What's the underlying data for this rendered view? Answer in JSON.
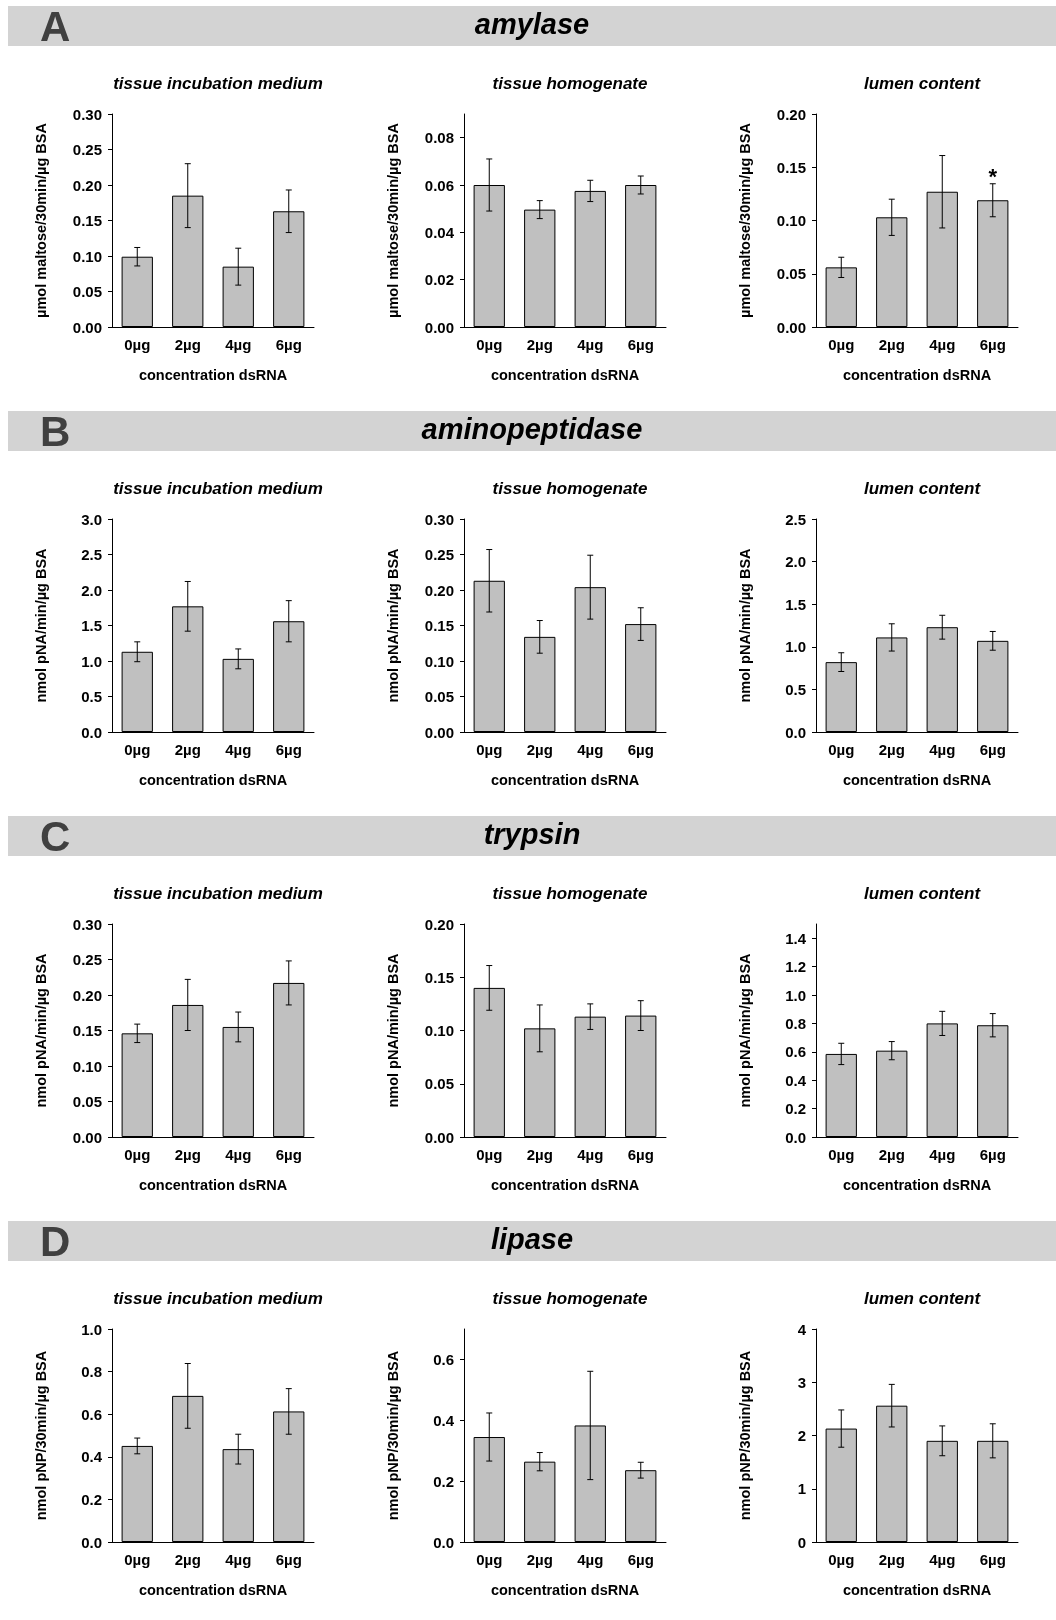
{
  "chart_data": [
    {
      "type": "bar",
      "title": "tissue incubation medium",
      "annotations": [
        "A",
        "amylase"
      ],
      "xlabel": "concentration dsRNA",
      "ylabel": "µmol maltose/30min/µg BSA",
      "categories": [
        "0µg",
        "2µg",
        "4µg",
        "6µg"
      ],
      "color": "#c0c0c0",
      "values": [
        0.099,
        0.185,
        0.085,
        0.163
      ],
      "errors": [
        0.013,
        0.045,
        0.026,
        0.03
      ],
      "ylim": [
        0,
        0.3
      ],
      "yticks": [
        {
          "value": 0,
          "label": "0.00"
        },
        {
          "value": 0.05,
          "label": "0.05"
        },
        {
          "value": 0.1,
          "label": "0.10"
        },
        {
          "value": 0.15,
          "label": "0.15"
        },
        {
          "value": 0.2,
          "label": "0.20"
        },
        {
          "value": 0.25,
          "label": "0.25"
        },
        {
          "value": 0.3,
          "label": "0.30"
        }
      ],
      "grid": false
    },
    {
      "type": "bar",
      "title": "tissue homogenate",
      "xlabel": "concentration dsRNA",
      "ylabel": "µmol maltose/30min/µg BSA",
      "categories": [
        "0µg",
        "2µg",
        "4µg",
        "6µg"
      ],
      "color": "#c0c0c0",
      "values": [
        0.06,
        0.0496,
        0.0575,
        0.06
      ],
      "errors": [
        0.011,
        0.0038,
        0.0045,
        0.0038
      ],
      "ylim": [
        0,
        0.09
      ],
      "yticks": [
        {
          "value": 0,
          "label": "0.00"
        },
        {
          "value": 0.02,
          "label": "0.02"
        },
        {
          "value": 0.04,
          "label": "0.04"
        },
        {
          "value": 0.06,
          "label": "0.06"
        },
        {
          "value": 0.08,
          "label": "0.08"
        }
      ],
      "grid": false
    },
    {
      "type": "bar",
      "title": "lumen content",
      "xlabel": "concentration dsRNA",
      "ylabel": "µmol maltose/30min/µg BSA",
      "categories": [
        "0µg",
        "2µg",
        "4µg",
        "6µg"
      ],
      "color": "#c0c0c0",
      "values": [
        0.056,
        0.103,
        0.127,
        0.119
      ],
      "errors": [
        0.0095,
        0.017,
        0.034,
        0.0155
      ],
      "annotations": [
        {
          "text": "*",
          "x": "6µg",
          "y": 0.1345
        }
      ],
      "ylim": [
        0,
        0.2
      ],
      "yticks": [
        {
          "value": 0,
          "label": "0.00"
        },
        {
          "value": 0.05,
          "label": "0.05"
        },
        {
          "value": 0.1,
          "label": "0.10"
        },
        {
          "value": 0.15,
          "label": "0.15"
        },
        {
          "value": 0.2,
          "label": "0.20"
        }
      ],
      "grid": false
    },
    {
      "type": "bar",
      "title": "tissue incubation medium",
      "annotations": [
        "B",
        "aminopeptidase"
      ],
      "xlabel": "concentration dsRNA",
      "ylabel": "nmol pNA/min/µg BSA",
      "categories": [
        "0µg",
        "2µg",
        "4µg",
        "6µg"
      ],
      "color": "#c0c0c0",
      "values": [
        1.13,
        1.77,
        1.03,
        1.56
      ],
      "errors": [
        0.14,
        0.35,
        0.14,
        0.29
      ],
      "ylim": [
        0,
        3
      ],
      "yticks": [
        {
          "value": 0,
          "label": "0.0"
        },
        {
          "value": 0.5,
          "label": "0.5"
        },
        {
          "value": 1,
          "label": "1.0"
        },
        {
          "value": 1.5,
          "label": "1.5"
        },
        {
          "value": 2,
          "label": "2.0"
        },
        {
          "value": 2.5,
          "label": "2.5"
        },
        {
          "value": 3,
          "label": "3.0"
        }
      ],
      "grid": false
    },
    {
      "type": "bar",
      "title": "tissue homogenate",
      "xlabel": "concentration dsRNA",
      "ylabel": "nmol pNA/min/µg BSA",
      "categories": [
        "0µg",
        "2µg",
        "4µg",
        "6µg"
      ],
      "color": "#c0c0c0",
      "values": [
        0.213,
        0.134,
        0.204,
        0.152
      ],
      "errors": [
        0.044,
        0.023,
        0.045,
        0.023
      ],
      "ylim": [
        0,
        0.3
      ],
      "yticks": [
        {
          "value": 0,
          "label": "0.00"
        },
        {
          "value": 0.05,
          "label": "0.05"
        },
        {
          "value": 0.1,
          "label": "0.10"
        },
        {
          "value": 0.15,
          "label": "0.15"
        },
        {
          "value": 0.2,
          "label": "0.20"
        },
        {
          "value": 0.25,
          "label": "0.25"
        },
        {
          "value": 0.3,
          "label": "0.30"
        }
      ],
      "grid": false
    },
    {
      "type": "bar",
      "title": "lumen content",
      "xlabel": "concentration dsRNA",
      "ylabel": "nmol pNA/min/µg BSA",
      "categories": [
        "0µg",
        "2µg",
        "4µg",
        "6µg"
      ],
      "color": "#c0c0c0",
      "values": [
        0.82,
        1.11,
        1.23,
        1.07
      ],
      "errors": [
        0.11,
        0.16,
        0.14,
        0.11
      ],
      "ylim": [
        0,
        2.5
      ],
      "yticks": [
        {
          "value": 0,
          "label": "0.0"
        },
        {
          "value": 0.5,
          "label": "0.5"
        },
        {
          "value": 1,
          "label": "1.0"
        },
        {
          "value": 1.5,
          "label": "1.5"
        },
        {
          "value": 2,
          "label": "2.0"
        },
        {
          "value": 2.5,
          "label": "2.5"
        }
      ],
      "grid": false
    },
    {
      "type": "bar",
      "title": "tissue incubation medium",
      "annotations": [
        "C",
        "trypsin"
      ],
      "xlabel": "concentration dsRNA",
      "ylabel": "nmol pNA/min/µg BSA",
      "categories": [
        "0µg",
        "2µg",
        "4µg",
        "6µg"
      ],
      "color": "#c0c0c0",
      "values": [
        0.146,
        0.186,
        0.155,
        0.217
      ],
      "errors": [
        0.013,
        0.036,
        0.021,
        0.031
      ],
      "ylim": [
        0,
        0.3
      ],
      "yticks": [
        {
          "value": 0,
          "label": "0.00"
        },
        {
          "value": 0.05,
          "label": "0.05"
        },
        {
          "value": 0.1,
          "label": "0.10"
        },
        {
          "value": 0.15,
          "label": "0.15"
        },
        {
          "value": 0.2,
          "label": "0.20"
        },
        {
          "value": 0.25,
          "label": "0.25"
        },
        {
          "value": 0.3,
          "label": "0.30"
        }
      ],
      "grid": false
    },
    {
      "type": "bar",
      "title": "tissue homogenate",
      "xlabel": "concentration dsRNA",
      "ylabel": "nmol pNA/min/µg BSA",
      "categories": [
        "0µg",
        "2µg",
        "4µg",
        "6µg"
      ],
      "color": "#c0c0c0",
      "values": [
        0.14,
        0.102,
        0.113,
        0.114
      ],
      "errors": [
        0.021,
        0.022,
        0.012,
        0.014
      ],
      "ylim": [
        0,
        0.2
      ],
      "yticks": [
        {
          "value": 0,
          "label": "0.00"
        },
        {
          "value": 0.05,
          "label": "0.05"
        },
        {
          "value": 0.1,
          "label": "0.10"
        },
        {
          "value": 0.15,
          "label": "0.15"
        },
        {
          "value": 0.2,
          "label": "0.20"
        }
      ],
      "grid": false
    },
    {
      "type": "bar",
      "title": "lumen content",
      "xlabel": "concentration dsRNA",
      "ylabel": "nmol pNA/min/µg BSA",
      "categories": [
        "0µg",
        "2µg",
        "4µg",
        "6µg"
      ],
      "color": "#c0c0c0",
      "values": [
        0.585,
        0.608,
        0.8,
        0.787
      ],
      "errors": [
        0.075,
        0.064,
        0.085,
        0.082
      ],
      "ylim": [
        0,
        1.5
      ],
      "yticks": [
        {
          "value": 0,
          "label": "0.0"
        },
        {
          "value": 0.2,
          "label": "0.2"
        },
        {
          "value": 0.4,
          "label": "0.4"
        },
        {
          "value": 0.6,
          "label": "0.6"
        },
        {
          "value": 0.8,
          "label": "0.8"
        },
        {
          "value": 1,
          "label": "1.0"
        },
        {
          "value": 1.2,
          "label": "1.2"
        },
        {
          "value": 1.4,
          "label": "1.4"
        }
      ],
      "grid": false
    },
    {
      "type": "bar",
      "title": "tissue incubation medium",
      "annotations": [
        "D",
        "lipase"
      ],
      "xlabel": "concentration dsRNA",
      "ylabel": "nmol pNP/30min/µg BSA",
      "categories": [
        "0µg",
        "2µg",
        "4µg",
        "6µg"
      ],
      "color": "#c0c0c0",
      "values": [
        0.451,
        0.686,
        0.436,
        0.613
      ],
      "errors": [
        0.037,
        0.152,
        0.07,
        0.107
      ],
      "ylim": [
        0,
        1
      ],
      "yticks": [
        {
          "value": 0,
          "label": "0.0"
        },
        {
          "value": 0.2,
          "label": "0.2"
        },
        {
          "value": 0.4,
          "label": "0.4"
        },
        {
          "value": 0.6,
          "label": "0.6"
        },
        {
          "value": 0.8,
          "label": "0.8"
        },
        {
          "value": 1,
          "label": "1.0"
        }
      ],
      "grid": false
    },
    {
      "type": "bar",
      "title": "tissue homogenate",
      "xlabel": "concentration dsRNA",
      "ylabel": "nmol pNP/30min/µg BSA",
      "categories": [
        "0µg",
        "2µg",
        "4µg",
        "6µg"
      ],
      "color": "#c0c0c0",
      "values": [
        0.345,
        0.264,
        0.383,
        0.236
      ],
      "errors": [
        0.079,
        0.03,
        0.178,
        0.026
      ],
      "ylim": [
        0,
        0.7
      ],
      "yticks": [
        {
          "value": 0,
          "label": "0.0"
        },
        {
          "value": 0.2,
          "label": "0.2"
        },
        {
          "value": 0.4,
          "label": "0.4"
        },
        {
          "value": 0.6,
          "label": "0.6"
        }
      ],
      "grid": false
    },
    {
      "type": "bar",
      "title": "lumen content",
      "xlabel": "concentration dsRNA",
      "ylabel": "nmol pNP/30min/µg BSA",
      "categories": [
        "0µg",
        "2µg",
        "4µg",
        "6µg"
      ],
      "color": "#c0c0c0",
      "values": [
        2.13,
        2.56,
        1.9,
        1.9
      ],
      "errors": [
        0.35,
        0.4,
        0.28,
        0.32
      ],
      "ylim": [
        0,
        4
      ],
      "yticks": [
        0,
        1,
        2,
        3,
        4
      ],
      "grid": false
    }
  ]
}
